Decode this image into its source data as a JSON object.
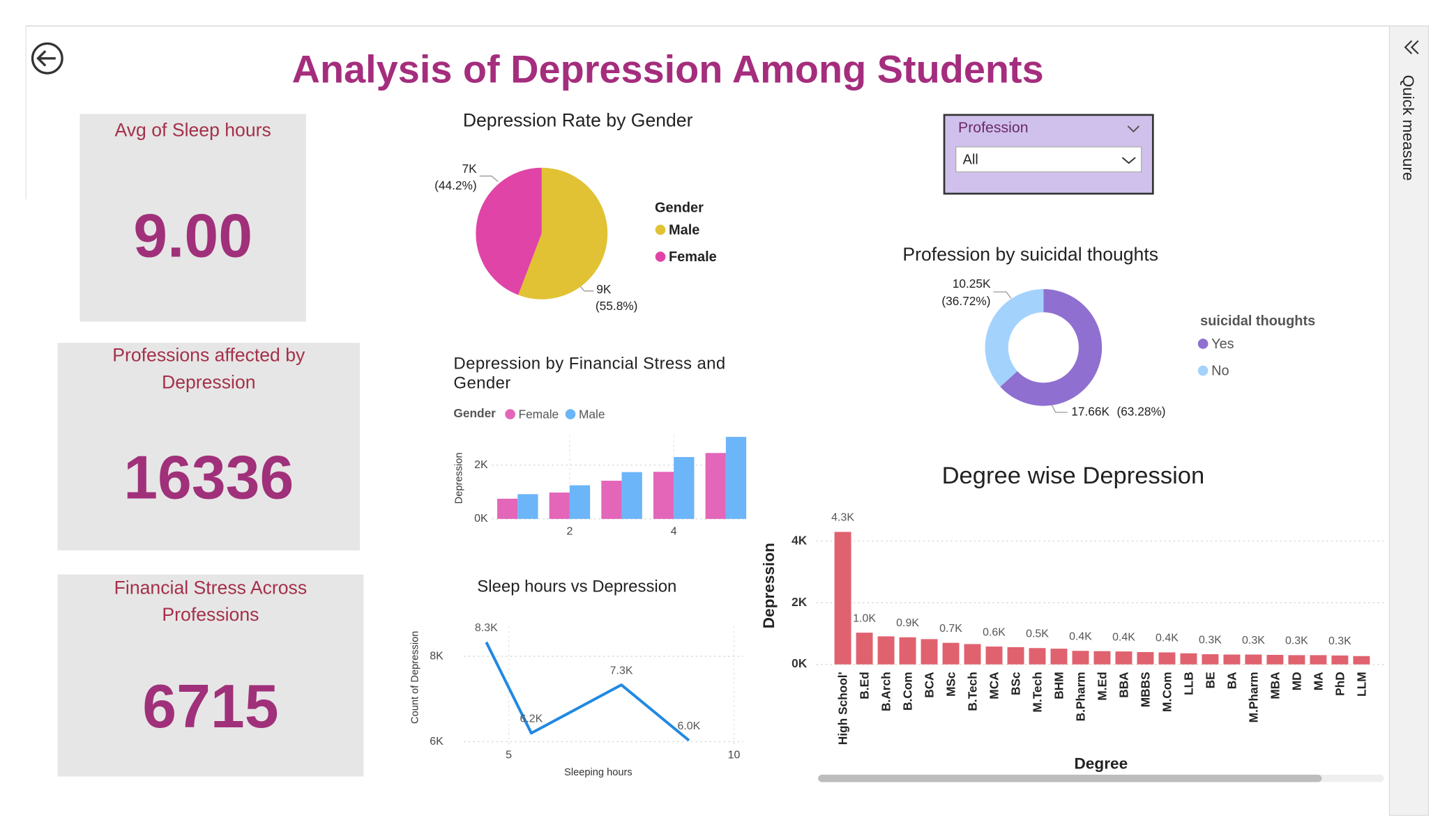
{
  "title": "Analysis of Depression Among Students",
  "cards": [
    {
      "label": "Avg of Sleep hours",
      "value": "9.00"
    },
    {
      "label": "Professions affected by Depression",
      "value": 16336
    },
    {
      "label": "Financial Stress Across Professions",
      "value": 6715
    }
  ],
  "slicer": {
    "title": "Profession",
    "selected": "All"
  },
  "side_panel": {
    "label": "Quick measure"
  },
  "chart_data": [
    {
      "type": "pie",
      "title": "Depression Rate by Gender",
      "legend_title": "Gender",
      "categories": [
        "Male",
        "Female"
      ],
      "colors": [
        "#e1c234",
        "#e044a7"
      ],
      "values": [
        55.8,
        44.2
      ],
      "value_labels": [
        "(55.8%)",
        "(44.2%)"
      ],
      "count_labels": [
        "9K",
        "7K"
      ]
    },
    {
      "type": "donut",
      "title": "Profession by suicidal thoughts",
      "legend_title": "suicidal thoughts",
      "categories": [
        "Yes",
        "No"
      ],
      "colors": [
        "#8f6fd0",
        "#a3d2fd"
      ],
      "values": [
        63.28,
        36.72
      ],
      "value_labels": [
        "(63.28%)",
        "(36.72%)"
      ],
      "count_labels": [
        "17.66K",
        "10.25K"
      ]
    },
    {
      "type": "grouped_bar",
      "title": "Depression by Financial Stress and Gender",
      "legend_title": "Gender",
      "y_label": "Depression",
      "x": [
        1,
        2,
        3,
        4,
        5
      ],
      "series": [
        {
          "name": "Female",
          "color": "#e366b9",
          "values": [
            750,
            980,
            1420,
            1750,
            2450
          ]
        },
        {
          "name": "Male",
          "color": "#6cb5f8",
          "values": [
            920,
            1250,
            1740,
            2300,
            3050
          ]
        }
      ],
      "xlim": [
        0.5,
        5.4
      ],
      "xticks": [
        2,
        4
      ],
      "ylim": [
        0,
        3100
      ],
      "yticks": [
        {
          "value": 0,
          "label": "0K"
        },
        {
          "value": 2000,
          "label": "2K"
        }
      ],
      "grid": true
    },
    {
      "type": "line",
      "title": "Sleep hours vs Depression",
      "x_label": "Sleeping hours",
      "y_label": "Count of Depression",
      "x": [
        4.5,
        5.5,
        7.5,
        9
      ],
      "values": [
        8330,
        6200,
        7330,
        6030
      ],
      "value_labels": [
        "8.3K",
        "6.2K",
        "7.3K",
        "6.0K"
      ],
      "color": "#2189e2",
      "xlim": [
        4,
        10.2
      ],
      "xticks": [
        5,
        10
      ],
      "ylim": [
        5900,
        8700
      ],
      "yticks": [
        {
          "value": 6000,
          "label": "6K"
        },
        {
          "value": 8000,
          "label": "8K"
        }
      ],
      "grid": true
    },
    {
      "type": "bar",
      "title": "Degree wise Depression",
      "x_label": "Degree",
      "y_label": "Depression",
      "categories": [
        "High School'",
        "B.Ed",
        "B.Arch",
        "B.Com",
        "BCA",
        "MSc",
        "B.Tech",
        "MCA",
        "BSc",
        "M.Tech",
        "BHM",
        "B.Pharm",
        "M.Ed",
        "BBA",
        "MBBS",
        "M.Com",
        "LLB",
        "BE",
        "BA",
        "M.Pharm",
        "MBA",
        "MD",
        "MA",
        "PhD",
        "LLM"
      ],
      "values": [
        4300,
        1030,
        910,
        880,
        820,
        700,
        660,
        580,
        560,
        530,
        510,
        440,
        430,
        420,
        400,
        390,
        360,
        330,
        320,
        320,
        310,
        300,
        300,
        290,
        270
      ],
      "value_labels": [
        "4.3K",
        "1.0K",
        null,
        "0.9K",
        null,
        "0.7K",
        null,
        "0.6K",
        null,
        "0.5K",
        null,
        "0.4K",
        null,
        "0.4K",
        null,
        "0.4K",
        null,
        "0.3K",
        null,
        "0.3K",
        null,
        "0.3K",
        null,
        "0.3K",
        null
      ],
      "color": "#e0626f",
      "ylim": [
        0,
        4700
      ],
      "yticks": [
        {
          "value": 0,
          "label": "0K"
        },
        {
          "value": 2000,
          "label": "2K"
        },
        {
          "value": 4000,
          "label": "4K"
        }
      ],
      "grid": true
    }
  ]
}
